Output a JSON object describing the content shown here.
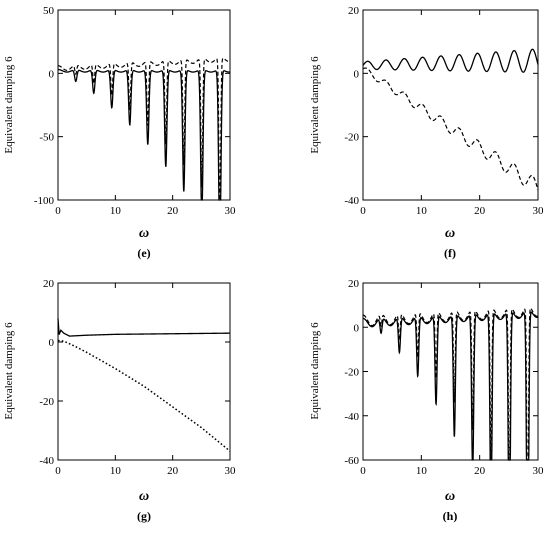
{
  "chart_data": [
    {
      "panel": "(e)",
      "type": "line",
      "ylabel": "Equivalent damping 6",
      "xlabel": "ω",
      "xlim": [
        0,
        30
      ],
      "ylim": [
        -100,
        50
      ],
      "xticks": [
        0,
        10,
        20,
        30
      ],
      "yticks": [
        -100,
        -50,
        0,
        50
      ],
      "grid": false,
      "series": [
        {
          "style": "solid",
          "base": 2,
          "ripple": 1,
          "drop_base": 2,
          "drop_slope": 2.05,
          "drop_width": 0.28,
          "dip_spacing": 3.14,
          "dip_first": 3.1,
          "drift": 0
        },
        {
          "style": "dashed",
          "base": 4,
          "ripple": 2,
          "drop_base": 1,
          "drop_slope": 1.8,
          "drop_width": 0.22,
          "dip_spacing": 3.14,
          "dip_first": 3.1,
          "drift": 0.25
        }
      ]
    },
    {
      "panel": "(f)",
      "type": "line",
      "ylabel": "Equivalent damping 6",
      "xlabel": "ω",
      "xlim": [
        0,
        30
      ],
      "ylim": [
        -40,
        20
      ],
      "xticks": [
        0,
        10,
        20,
        30
      ],
      "yticks": [
        -40,
        -20,
        0,
        20
      ],
      "grid": false,
      "series": [
        {
          "style": "solid",
          "base": 2.5,
          "ripple": 1.2,
          "ripple_growth": 0.07,
          "period": 3.14,
          "drift": 0.05
        },
        {
          "style": "dashed",
          "base": 1.5,
          "slope": -1.25,
          "ripple": 0.9,
          "ripple_growth": 0.06,
          "period": 3.14
        }
      ]
    },
    {
      "panel": "(g)",
      "type": "line",
      "ylabel": "Equivalent damping 6",
      "xlabel": "ω",
      "xlim": [
        0,
        30
      ],
      "ylim": [
        -40,
        20
      ],
      "xticks": [
        0,
        10,
        20,
        30
      ],
      "yticks": [
        -40,
        -20,
        0,
        20
      ],
      "grid": false,
      "series": [
        {
          "style": "solid",
          "points": [
            [
              0,
              8
            ],
            [
              0.2,
              2.5
            ],
            [
              0.5,
              4
            ],
            [
              1,
              3
            ],
            [
              2,
              2
            ],
            [
              5,
              2.3
            ],
            [
              10,
              2.6
            ],
            [
              20,
              2.8
            ],
            [
              30,
              3
            ]
          ]
        },
        {
          "style": "dotted",
          "points": [
            [
              0,
              0.5
            ],
            [
              1,
              0.3
            ],
            [
              3,
              -1.5
            ],
            [
              5,
              -3.5
            ],
            [
              10,
              -9
            ],
            [
              15,
              -15
            ],
            [
              20,
              -22
            ],
            [
              25,
              -29
            ],
            [
              30,
              -37
            ]
          ]
        }
      ]
    },
    {
      "panel": "(h)",
      "type": "line",
      "ylabel": "Equivalent damping 6",
      "xlabel": "ω",
      "xlim": [
        0,
        30
      ],
      "ylim": [
        -60,
        20
      ],
      "xticks": [
        0,
        10,
        20,
        30
      ],
      "yticks": [
        -60,
        -40,
        -20,
        0,
        20
      ],
      "grid": false,
      "series": [
        {
          "style": "solid",
          "base": 2,
          "ripple": 2,
          "drop_base": 0,
          "drop_slope": 2.0,
          "drop_width": 0.25,
          "dip_spacing": 3.14,
          "dip_first": 3.1,
          "drift": 0.15
        },
        {
          "style": "dashed",
          "base": 3,
          "ripple": 2.5,
          "drop_base": 0,
          "drop_slope": 1.5,
          "drop_width": 0.2,
          "dip_spacing": 3.14,
          "dip_first": 3.1,
          "drift": 0.15
        }
      ]
    }
  ]
}
